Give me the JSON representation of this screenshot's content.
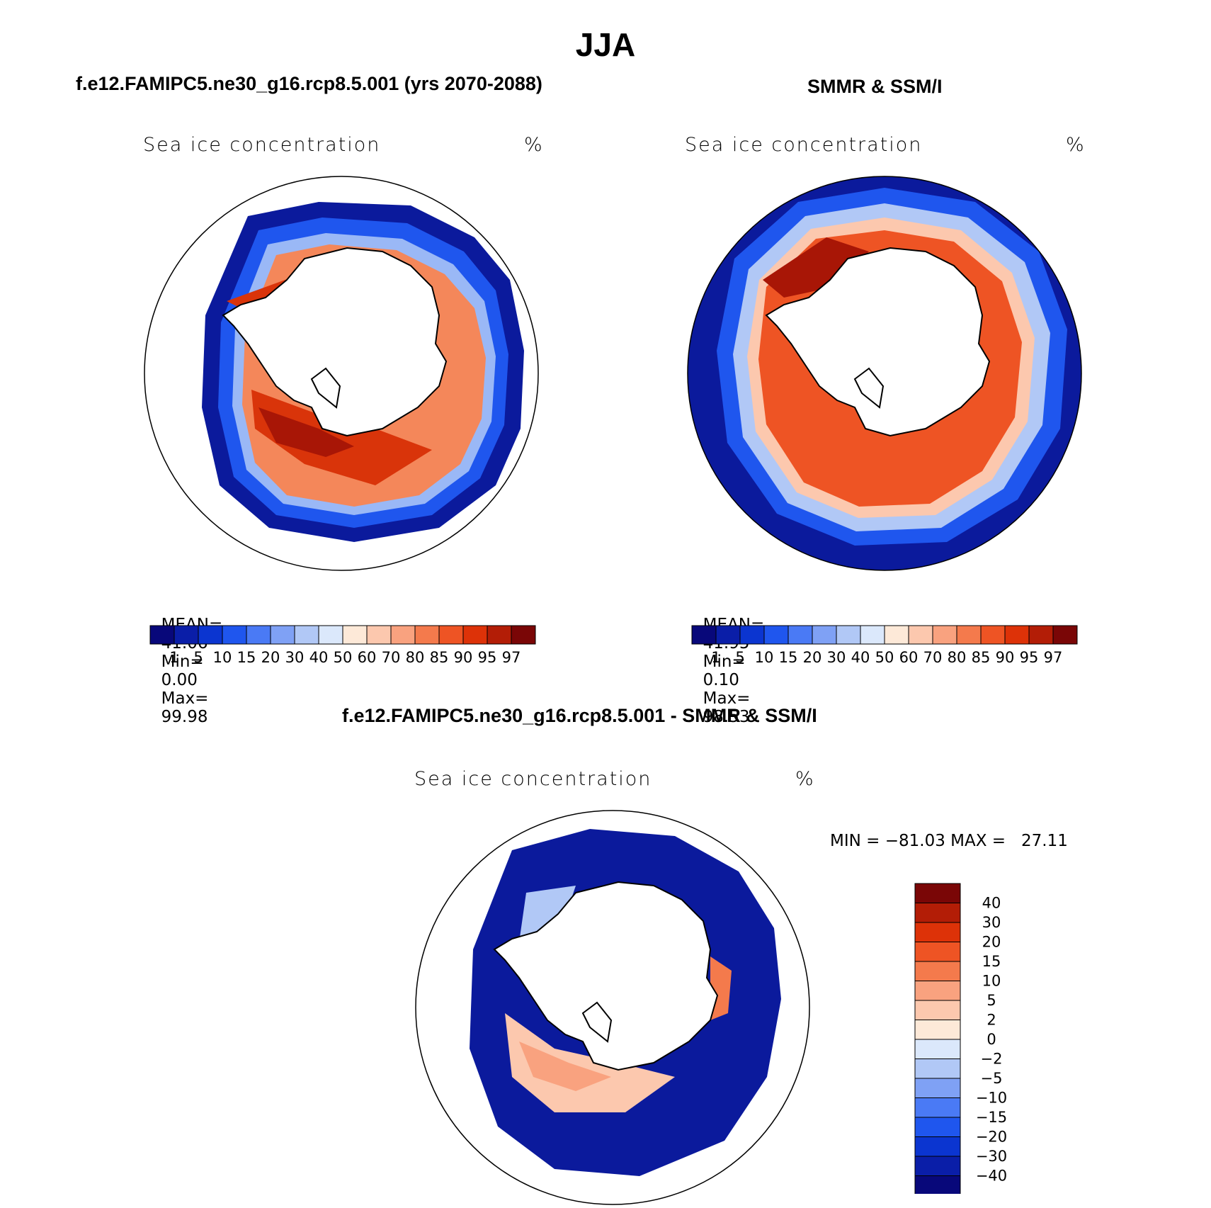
{
  "figure": {
    "season": "JJA",
    "panels": [
      {
        "title": "f.e12.FAMIPC5.ne30_g16.rcp8.5.001 (yrs 2070-2088)",
        "variable": "Sea ice concentration",
        "units": "%",
        "stats": {
          "mean_label": "MEAN=",
          "mean": "41.06",
          "min_label": "Min=",
          "min": "0.00",
          "max_label": "Max=",
          "max": "99.98"
        }
      },
      {
        "title": "SMMR & SSM/I",
        "variable": "Sea ice concentration",
        "units": "%",
        "stats": {
          "mean_label": "MEAN=",
          "mean": "41.95",
          "min_label": "Min=",
          "min": "0.10",
          "max_label": "Max=",
          "max": "98.53"
        }
      },
      {
        "title": "f.e12.FAMIPC5.ne30_g16.rcp8.5.001 - SMMR & SSM/I",
        "variable": "Sea ice concentration",
        "units": "%",
        "stats": {
          "minmax": "MIN = −81.03 MAX =   27.11"
        }
      }
    ]
  },
  "chart_data": [
    {
      "type": "map",
      "title": "f.e12.FAMIPC5.ne30_g16.rcp8.5.001 (yrs 2070-2088)",
      "variable": "Sea ice concentration (%)",
      "projection": "south polar stereographic",
      "summary": {
        "mean": 41.06,
        "min": 0.0,
        "max": 99.98
      }
    },
    {
      "type": "map",
      "title": "SMMR & SSM/I",
      "variable": "Sea ice concentration (%)",
      "projection": "south polar stereographic",
      "summary": {
        "mean": 41.95,
        "min": 0.1,
        "max": 98.53
      }
    },
    {
      "type": "map",
      "title": "f.e12.FAMIPC5.ne30_g16.rcp8.5.001 - SMMR & SSM/I",
      "variable": "Sea ice concentration difference (%)",
      "projection": "south polar stereographic",
      "summary": {
        "min": -81.03,
        "max": 27.11
      }
    }
  ],
  "colorbars": {
    "abs": {
      "labels": [
        "1",
        "5",
        "10",
        "15",
        "20",
        "30",
        "40",
        "50",
        "60",
        "70",
        "80",
        "85",
        "90",
        "95",
        "97"
      ],
      "colors": [
        "#08087a",
        "#0a1ea8",
        "#0b35d0",
        "#1f56ee",
        "#4a7af5",
        "#7fa1f5",
        "#b1c8f6",
        "#dbe8fb",
        "#fde9d8",
        "#fcc8ae",
        "#f9a27f",
        "#f47a4c",
        "#ee5424",
        "#dd3208",
        "#b31d06",
        "#7a0606"
      ]
    },
    "diff": {
      "labels": [
        "40",
        "30",
        "20",
        "15",
        "10",
        "5",
        "2",
        "0",
        "−2",
        "−5",
        "−10",
        "−15",
        "−20",
        "−30",
        "−40"
      ],
      "colors": [
        "#7a0606",
        "#b31d06",
        "#dd3208",
        "#ee5424",
        "#f47a4c",
        "#f9a27f",
        "#fcc8ae",
        "#fde9d8",
        "#dbe8fb",
        "#b1c8f6",
        "#7fa1f5",
        "#4a7af5",
        "#1f56ee",
        "#0b35d0",
        "#0a1ea8",
        "#08087a"
      ]
    }
  }
}
